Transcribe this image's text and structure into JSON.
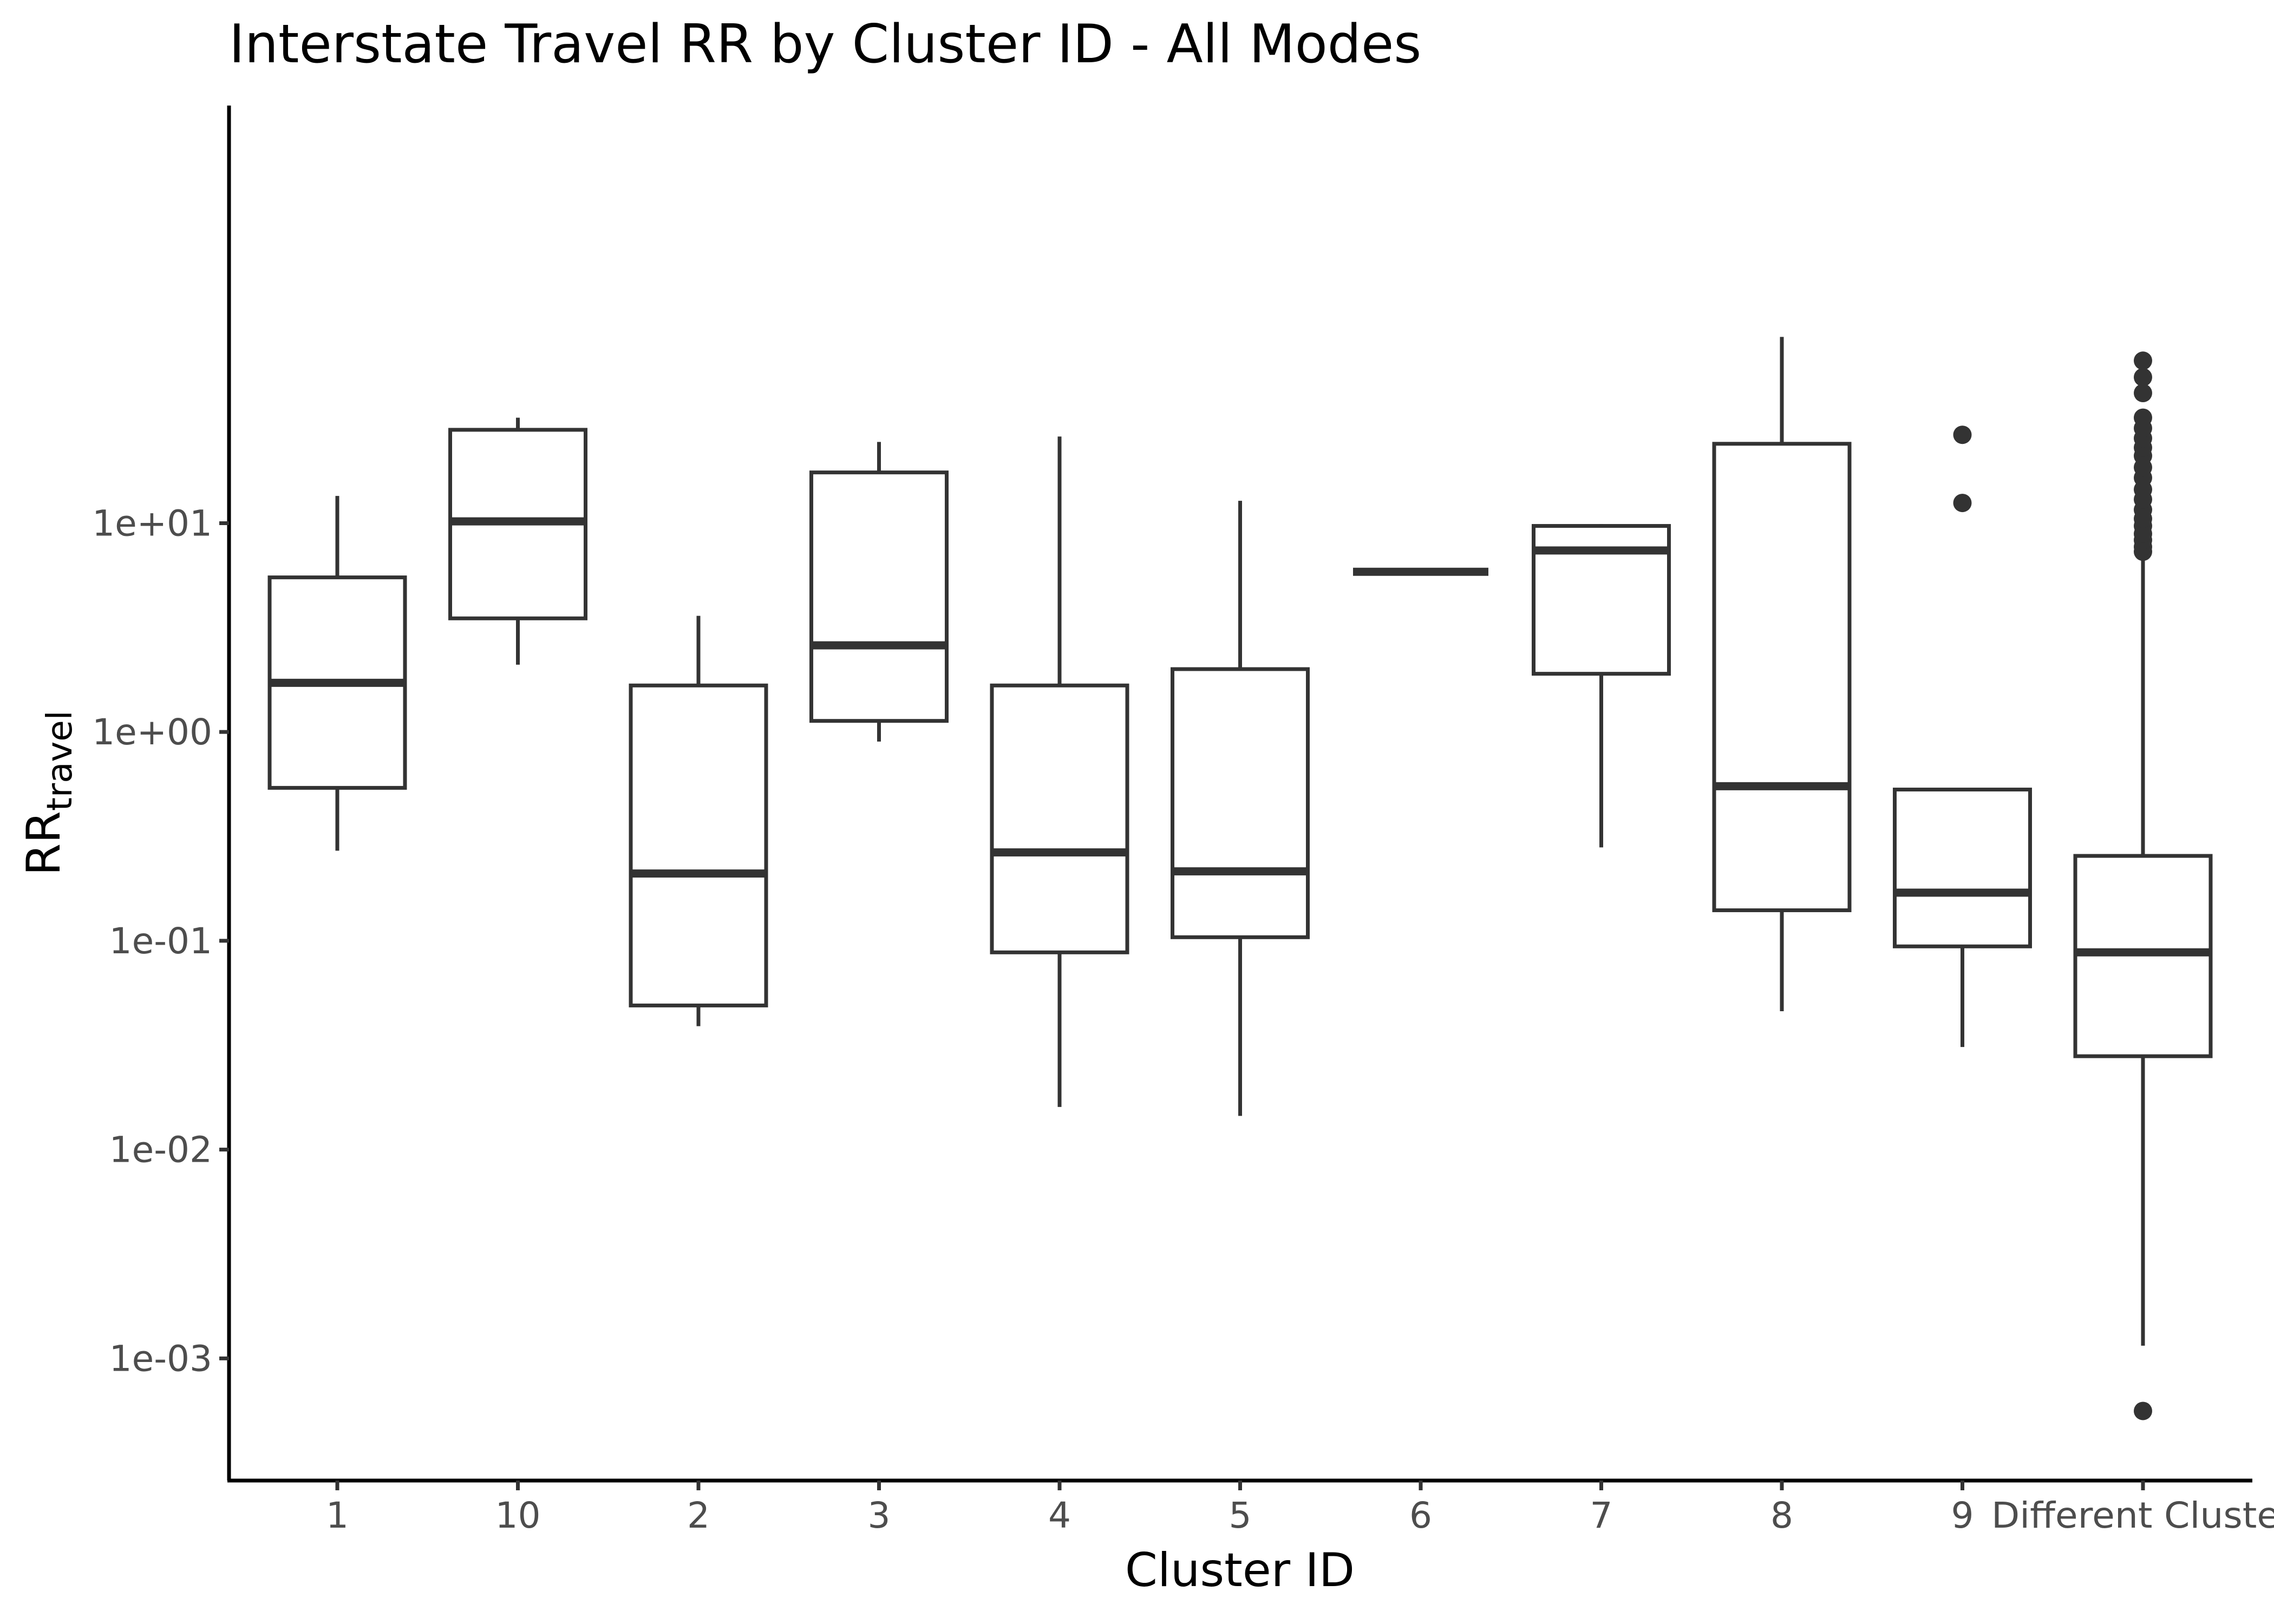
{
  "chart_data": {
    "type": "box",
    "title": "Interstate Travel RR by Cluster ID - All Modes",
    "xlabel": "Cluster ID",
    "ylabel_main": "RR",
    "ylabel_sub": "travel",
    "y_scale": "log10",
    "ylim": [
      0.00026,
      1000
    ],
    "y_ticks": [
      {
        "value": 0.001,
        "label": "1e-03"
      },
      {
        "value": 0.01,
        "label": "1e-02"
      },
      {
        "value": 0.1,
        "label": "1e-01"
      },
      {
        "value": 1,
        "label": "1e+00"
      },
      {
        "value": 10,
        "label": "1e+01"
      }
    ],
    "grid": false,
    "legend": "none",
    "categories": [
      "1",
      "10",
      "2",
      "3",
      "4",
      "5",
      "6",
      "7",
      "8",
      "9",
      "Different Cluster"
    ],
    "boxes": [
      {
        "category": "1",
        "whisker_low": 0.27,
        "q1": 0.54,
        "median": 1.72,
        "q3": 5.5,
        "whisker_high": 13.5,
        "outliers": []
      },
      {
        "category": "10",
        "whisker_low": 2.1,
        "q1": 3.5,
        "median": 10.2,
        "q3": 28,
        "whisker_high": 32,
        "outliers": []
      },
      {
        "category": "2",
        "whisker_low": 0.039,
        "q1": 0.049,
        "median": 0.21,
        "q3": 1.67,
        "whisker_high": 3.6,
        "outliers": []
      },
      {
        "category": "3",
        "whisker_low": 0.9,
        "q1": 1.13,
        "median": 2.6,
        "q3": 17.5,
        "whisker_high": 24.5,
        "outliers": []
      },
      {
        "category": "4",
        "whisker_low": 0.016,
        "q1": 0.088,
        "median": 0.265,
        "q3": 1.67,
        "whisker_high": 26,
        "outliers": []
      },
      {
        "category": "5",
        "whisker_low": 0.0145,
        "q1": 0.104,
        "median": 0.215,
        "q3": 2.0,
        "whisker_high": 12.8,
        "outliers": []
      },
      {
        "category": "6",
        "whisker_low": 5.85,
        "q1": 5.85,
        "median": 5.85,
        "q3": 5.85,
        "whisker_high": 5.85,
        "outliers": []
      },
      {
        "category": "7",
        "whisker_low": 0.28,
        "q1": 1.9,
        "median": 7.4,
        "q3": 9.7,
        "whisker_high": 9.9,
        "outliers": []
      },
      {
        "category": "8",
        "whisker_low": 0.046,
        "q1": 0.14,
        "median": 0.55,
        "q3": 24,
        "whisker_high": 78,
        "outliers": []
      },
      {
        "category": "9",
        "whisker_low": 0.031,
        "q1": 0.094,
        "median": 0.17,
        "q3": 0.53,
        "whisker_high": 0.54,
        "outliers": [
          12.5,
          26.5
        ]
      },
      {
        "category": "Different Cluster",
        "whisker_low": 0.00115,
        "q1": 0.028,
        "median": 0.088,
        "q3": 0.255,
        "whisker_high": 6.9,
        "outliers": [
          0.00056,
          7.3,
          7.7,
          8.3,
          8.9,
          9.7,
          10.5,
          11.6,
          13.0,
          14.5,
          16.5,
          18.5,
          21,
          23,
          25.5,
          28.5,
          32,
          42,
          50,
          60
        ]
      }
    ]
  }
}
